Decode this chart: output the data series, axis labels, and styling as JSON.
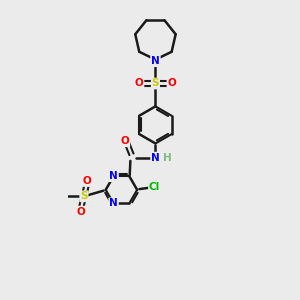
{
  "background_color": "#ebebeb",
  "bond_color": "#1a1a1a",
  "atom_colors": {
    "N": "#0000ff",
    "O": "#ff0000",
    "S": "#cccc00",
    "Cl": "#00bb00",
    "C": "#1a1a1a",
    "H": "#7fbb7f"
  },
  "figsize": [
    3.0,
    3.0
  ],
  "dpi": 100
}
